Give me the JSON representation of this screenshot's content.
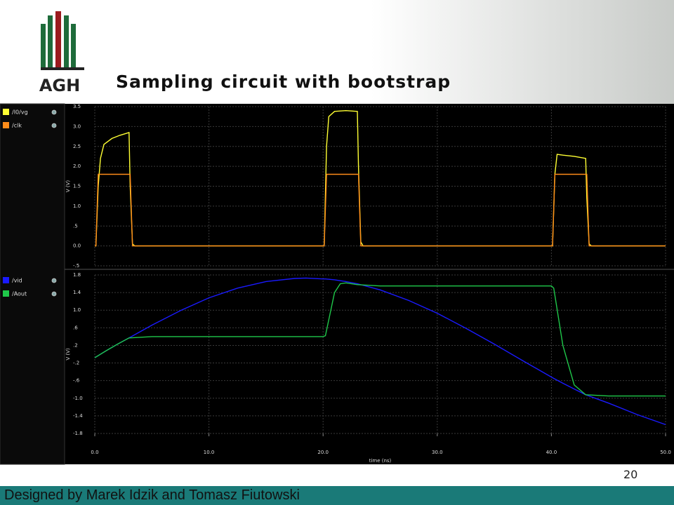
{
  "logo_text": "AGH",
  "title": "Sampling circuit with bootstrap",
  "page_number": "20",
  "footer": "Designed by Marek Idzik and Tomasz Fiutowski",
  "chart_data": [
    {
      "type": "line",
      "y_label": "V (V)",
      "xlim": [
        0,
        50
      ],
      "ylim": [
        -0.5,
        3.5
      ],
      "yticks": [
        3.5,
        {
          "value": 3,
          "label": "3.0"
        },
        2.5,
        {
          "value": 2,
          "label": "2.0"
        },
        1.5,
        {
          "value": 1,
          "label": "1.0"
        },
        {
          "value": 0.5,
          "label": ".5"
        },
        {
          "value": 0,
          "label": "0.0"
        },
        {
          "value": -0.5,
          "label": "-.5"
        }
      ],
      "grid": true,
      "x": [
        0,
        0.1,
        0.3,
        0.5,
        0.8,
        1.5,
        2.2,
        3.0,
        3.1,
        3.3,
        3.5,
        10,
        20,
        20.1,
        20.3,
        20.5,
        21,
        22,
        23,
        23.1,
        23.3,
        23.5,
        30,
        40,
        40.1,
        40.3,
        40.5,
        41,
        42,
        43,
        43.1,
        43.3,
        43.5,
        50
      ],
      "series": [
        {
          "name": "/I0/vg",
          "color": "#ffff33",
          "values": [
            0,
            0,
            1.5,
            2.2,
            2.55,
            2.7,
            2.78,
            2.85,
            1.5,
            0.05,
            0,
            0,
            0,
            0,
            2.5,
            3.25,
            3.38,
            3.4,
            3.38,
            2.0,
            0.1,
            0,
            0,
            0,
            0,
            1.8,
            2.3,
            2.28,
            2.25,
            2.2,
            1.2,
            0.05,
            0,
            0
          ]
        },
        {
          "name": "/clk",
          "color": "#ff8c1a",
          "values": [
            0,
            0,
            1.8,
            1.8,
            1.8,
            1.8,
            1.8,
            1.8,
            1.8,
            0,
            0,
            0,
            0,
            0,
            1.8,
            1.8,
            1.8,
            1.8,
            1.8,
            1.8,
            0,
            0,
            0,
            0,
            0,
            1.8,
            1.8,
            1.8,
            1.8,
            1.8,
            1.8,
            0,
            0,
            0
          ]
        }
      ]
    },
    {
      "type": "line",
      "y_label": "V (V)",
      "x_label": "time (ns)",
      "xlim": [
        0,
        50
      ],
      "ylim": [
        -1.8,
        1.8
      ],
      "xticks": [
        {
          "value": 0,
          "label": "0.0"
        },
        {
          "value": 10,
          "label": "10.0"
        },
        {
          "value": 20,
          "label": "20.0"
        },
        {
          "value": 30,
          "label": "30.0"
        },
        {
          "value": 40,
          "label": "40.0"
        },
        {
          "value": 50,
          "label": "50.0"
        }
      ],
      "yticks": [
        1.8,
        1.4,
        {
          "value": 1,
          "label": "1.0"
        },
        {
          "value": 0.6,
          "label": ".6"
        },
        {
          "value": 0.2,
          "label": ".2"
        },
        {
          "value": -0.2,
          "label": "-.2"
        },
        {
          "value": -0.6,
          "label": "-.6"
        },
        {
          "value": -1,
          "label": "-1.0"
        },
        -1.4,
        -1.8
      ],
      "grid": true,
      "x": [
        0,
        1,
        2,
        3,
        5,
        7.5,
        10,
        12.5,
        15,
        17.5,
        18.5,
        20,
        20.2,
        21,
        21.5,
        22,
        23,
        25,
        27.5,
        30,
        32.5,
        35,
        37.5,
        40,
        40.2,
        41,
        42,
        43,
        45,
        47.5,
        50
      ],
      "series": [
        {
          "name": "/vid",
          "color": "#1a1aff",
          "values": [
            -0.08,
            0.08,
            0.23,
            0.37,
            0.66,
            0.99,
            1.28,
            1.5,
            1.65,
            1.72,
            1.73,
            1.71,
            1.71,
            1.69,
            1.67,
            1.65,
            1.6,
            1.46,
            1.22,
            0.93,
            0.59,
            0.23,
            -0.15,
            -0.52,
            -0.55,
            -0.66,
            -0.79,
            -0.92,
            -1.11,
            -1.37,
            -1.6
          ]
        },
        {
          "name": "/Aout",
          "color": "#1fc84a",
          "values": [
            -0.08,
            0.08,
            0.23,
            0.37,
            0.4,
            0.4,
            0.4,
            0.4,
            0.4,
            0.4,
            0.4,
            0.4,
            0.42,
            1.4,
            1.6,
            1.62,
            1.58,
            1.55,
            1.55,
            1.55,
            1.55,
            1.55,
            1.55,
            1.55,
            1.5,
            0.2,
            -0.7,
            -0.92,
            -0.95,
            -0.95,
            -0.95
          ]
        }
      ]
    }
  ]
}
